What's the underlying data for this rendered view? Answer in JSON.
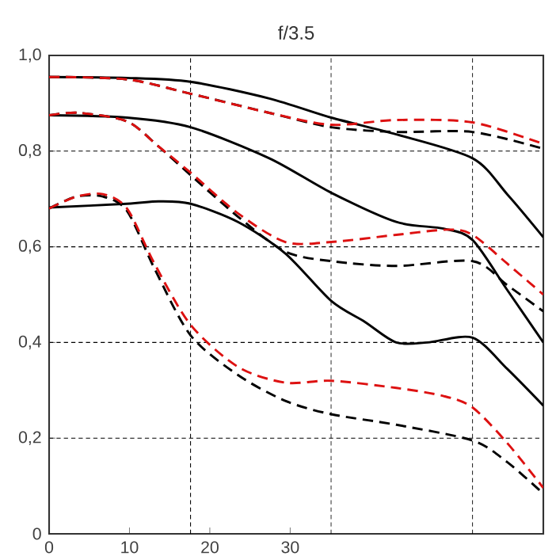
{
  "chart_data": {
    "type": "line",
    "title": "f/3.5",
    "xlim": [
      0,
      61.5
    ],
    "xticks": [
      0,
      10,
      20,
      30
    ],
    "ylim": [
      0,
      1.0
    ],
    "yticks": [
      {
        "value": 0,
        "label": "0"
      },
      {
        "value": 0.2,
        "label": "0,2"
      },
      {
        "value": 0.4,
        "label": "0,4"
      },
      {
        "value": 0.6,
        "label": "0,6"
      },
      {
        "value": 0.8,
        "label": "0,8"
      },
      {
        "value": 1.0,
        "label": "1,0"
      }
    ],
    "grid": "y",
    "marker": "none",
    "ref_lines": [
      {
        "axis": "x",
        "value": 17.6,
        "color": "#000000",
        "line_style": "dashed"
      },
      {
        "axis": "x",
        "value": 35.1,
        "color": "#000000",
        "line_style": "dashed"
      },
      {
        "axis": "x",
        "value": 52.7,
        "color": "#000000",
        "line_style": "dashed"
      }
    ],
    "series": [
      {
        "color": "#000000",
        "line_style": "solid",
        "x": [
          0,
          9.7,
          17.6,
          27.4,
          35.1,
          43.2,
          52.7,
          57,
          61.5
        ],
        "values": [
          0.955,
          0.953,
          0.945,
          0.91,
          0.87,
          0.835,
          0.785,
          0.71,
          0.62
        ]
      },
      {
        "color": "#000000",
        "line_style": "dashed",
        "x": [
          0,
          9.7,
          17.6,
          27.4,
          35.1,
          43.2,
          52.7,
          61.5
        ],
        "values": [
          0.955,
          0.95,
          0.92,
          0.88,
          0.85,
          0.84,
          0.84,
          0.805
        ]
      },
      {
        "color": "#dd1111",
        "line_style": "dashed",
        "x": [
          0,
          9.7,
          17.6,
          27.4,
          35.1,
          43.2,
          52.7,
          61.5
        ],
        "values": [
          0.955,
          0.95,
          0.92,
          0.88,
          0.855,
          0.865,
          0.86,
          0.815
        ]
      },
      {
        "color": "#000000",
        "line_style": "solid",
        "x": [
          0,
          9.7,
          17.6,
          27.4,
          35.1,
          43.2,
          49.1,
          52.7,
          57,
          61.5
        ],
        "values": [
          0.875,
          0.87,
          0.85,
          0.785,
          0.713,
          0.652,
          0.638,
          0.614,
          0.51,
          0.4
        ]
      },
      {
        "color": "#000000",
        "line_style": "dashed",
        "x": [
          0,
          3.7,
          9.7,
          13.6,
          17.6,
          23.5,
          29.4,
          35.1,
          43.2,
          52.7,
          57,
          61.5
        ],
        "values": [
          0.875,
          0.88,
          0.862,
          0.81,
          0.75,
          0.663,
          0.59,
          0.57,
          0.56,
          0.57,
          0.52,
          0.465
        ]
      },
      {
        "color": "#dd1111",
        "line_style": "dashed",
        "x": [
          0,
          3.7,
          9.7,
          13.6,
          17.6,
          23.5,
          29.4,
          35.1,
          43.2,
          49.7,
          52.7,
          57,
          61.5
        ],
        "values": [
          0.875,
          0.88,
          0.862,
          0.81,
          0.755,
          0.67,
          0.61,
          0.61,
          0.625,
          0.636,
          0.625,
          0.565,
          0.5
        ]
      },
      {
        "color": "#000000",
        "line_style": "solid",
        "x": [
          0,
          9.7,
          13.6,
          17.6,
          23.5,
          29.4,
          35.1,
          39.3,
          43.2,
          47.1,
          52.7,
          57,
          61.5
        ],
        "values": [
          0.682,
          0.69,
          0.695,
          0.69,
          0.652,
          0.586,
          0.487,
          0.443,
          0.4,
          0.4,
          0.41,
          0.345,
          0.268
        ]
      },
      {
        "color": "#000000",
        "line_style": "dashed",
        "x": [
          0,
          3.4,
          6.7,
          9.7,
          13.1,
          17.6,
          23.5,
          29.4,
          35.1,
          43.2,
          52.7,
          57,
          61.5
        ],
        "values": [
          0.68,
          0.705,
          0.705,
          0.675,
          0.555,
          0.415,
          0.332,
          0.278,
          0.25,
          0.228,
          0.195,
          0.15,
          0.084
        ]
      },
      {
        "color": "#dd1111",
        "line_style": "dashed",
        "x": [
          0,
          3.4,
          6.7,
          9.7,
          13.1,
          17.6,
          23.5,
          29.4,
          35.1,
          43.2,
          49.1,
          52.7,
          57,
          61.5
        ],
        "values": [
          0.68,
          0.705,
          0.71,
          0.68,
          0.565,
          0.437,
          0.349,
          0.316,
          0.32,
          0.305,
          0.288,
          0.264,
          0.19,
          0.096
        ]
      }
    ]
  }
}
